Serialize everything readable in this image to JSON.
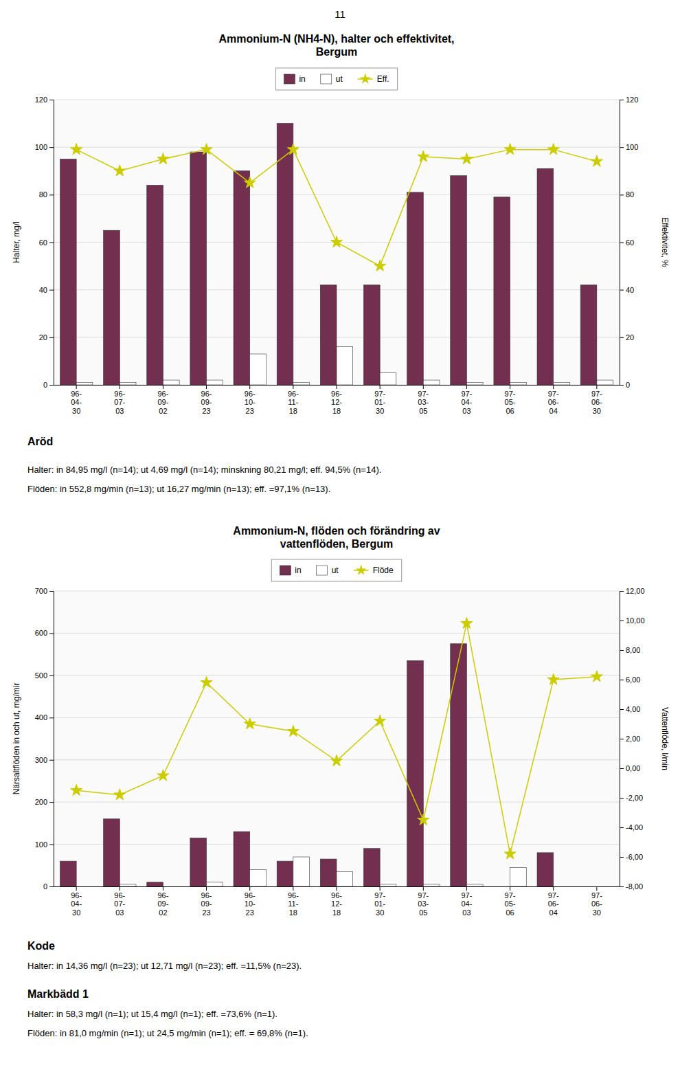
{
  "page_number": "11",
  "chart_data": [
    {
      "type": "bar",
      "title": "Ammonium-N (NH4-N), halter och effektivitet,\nBergum",
      "categories": [
        "96-\n04-\n30",
        "96-\n07-\n03",
        "96-\n09-\n02",
        "96-\n09-\n23",
        "96-\n10-\n23",
        "96-\n11-\n18",
        "96-\n12-\n18",
        "97-\n01-\n30",
        "97-\n03-\n05",
        "97-\n04-\n03",
        "97-\n05-\n06",
        "97-\n06-\n04",
        "97-\n06-\n30"
      ],
      "series": [
        {
          "name": "in",
          "type": "bar",
          "color": "#722F50",
          "values": [
            95,
            65,
            84,
            98,
            90,
            110,
            42,
            42,
            81,
            88,
            79,
            91,
            42
          ]
        },
        {
          "name": "ut",
          "type": "bar",
          "color": "#FFFFFF",
          "values": [
            1,
            1,
            2,
            2,
            13,
            1,
            16,
            5,
            2,
            1,
            1,
            1,
            2
          ]
        },
        {
          "name": "Eff.",
          "type": "line",
          "axis": "y2",
          "color": "#CCCC00",
          "marker": "star",
          "values": [
            99,
            90,
            95,
            99,
            85,
            99,
            60,
            50,
            96,
            95,
            99,
            99,
            94
          ]
        }
      ],
      "ylabel": "Halter, mg/l",
      "y2label": "Effektivitet, %",
      "ylim": [
        0,
        120
      ],
      "yticks": [
        0,
        20,
        40,
        60,
        80,
        100,
        120
      ],
      "y2lim": [
        0,
        120
      ],
      "y2ticks": [
        0,
        20,
        40,
        60,
        80,
        100,
        120
      ],
      "grid": true,
      "legend": "top"
    },
    {
      "type": "bar",
      "title": "Ammonium-N, flöden och förändring av\nvattenflöden, Bergum",
      "categories": [
        "96-\n04-\n30",
        "96-\n07-\n03",
        "96-\n09-\n02",
        "96-\n09-\n23",
        "96-\n10-\n23",
        "96-\n11-\n18",
        "96-\n12-\n18",
        "97-\n01-\n30",
        "97-\n03-\n05",
        "97-\n04-\n03",
        "97-\n05-\n06",
        "97-\n06-\n04",
        "97-\n06-\n30"
      ],
      "series": [
        {
          "name": "in",
          "type": "bar",
          "color": "#722F50",
          "values": [
            60,
            160,
            10,
            115,
            130,
            60,
            65,
            90,
            535,
            575,
            0,
            80,
            0
          ]
        },
        {
          "name": "ut",
          "type": "bar",
          "color": "#FFFFFF",
          "values": [
            0,
            5,
            0,
            10,
            40,
            70,
            35,
            5,
            5,
            5,
            45,
            0,
            0
          ]
        },
        {
          "name": "Flöde",
          "type": "line",
          "axis": "y2",
          "color": "#CCCC00",
          "marker": "star",
          "values": [
            -1.5,
            -1.8,
            -0.5,
            5.8,
            3.0,
            2.5,
            0.5,
            3.2,
            -3.5,
            9.8,
            -5.8,
            6.0,
            6.2
          ]
        }
      ],
      "ylabel": "Närsaltflöden in och ut, mg/mir",
      "y2label": "Vattenflöde, l/min",
      "ylim": [
        0,
        700
      ],
      "yticks": [
        0,
        100,
        200,
        300,
        400,
        500,
        600,
        700
      ],
      "y2lim": [
        -8,
        12
      ],
      "y2ticks": [
        {
          "value": -8,
          "label": "-8,00"
        },
        {
          "value": -6,
          "label": "-6,00"
        },
        {
          "value": -4,
          "label": "-4,00"
        },
        {
          "value": -2,
          "label": "-2,00"
        },
        {
          "value": 0,
          "label": "0,00"
        },
        {
          "value": 2,
          "label": "2,00"
        },
        {
          "value": 4,
          "label": "4,00"
        },
        {
          "value": 6,
          "label": "6,00"
        },
        {
          "value": 8,
          "label": "8,00"
        },
        {
          "value": 10,
          "label": "10,00"
        },
        {
          "value": 12,
          "label": "12,00"
        }
      ],
      "grid": true,
      "legend": "top"
    }
  ],
  "text_blocks": [
    {
      "heading": "Aröd",
      "lines": [
        "Halter: in 84,95 mg/l (n=14); ut 4,69 mg/l (n=14); minskning 80,21 mg/l; eff. 94,5% (n=14).",
        "Flöden: in 552,8 mg/min (n=13); ut 16,27 mg/min (n=13); eff. =97,1% (n=13)."
      ]
    },
    {
      "heading": "Kode",
      "lines": [
        "Halter: in 14,36 mg/l (n=23); ut 12,71 mg/l (n=23); eff. =11,5% (n=23)."
      ]
    },
    {
      "heading": "Markbädd 1",
      "lines": [
        "Halter: in 58,3 mg/l (n=1); ut 15,4 mg/l (n=1); eff. =73,6% (n=1).",
        "Flöden: in 81,0 mg/min (n=1); ut 24,5 mg/min (n=1); eff. = 69,8% (n=1)."
      ]
    }
  ]
}
